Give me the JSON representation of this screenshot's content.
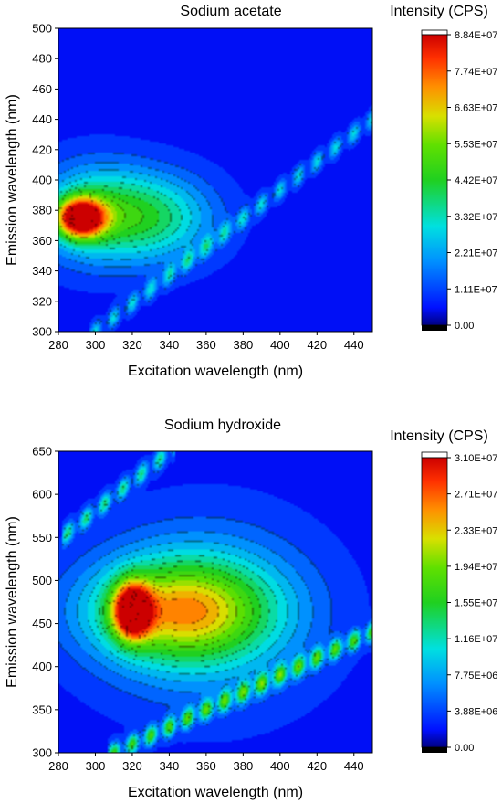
{
  "chart_data": [
    {
      "type": "heatmap",
      "title": "Sodium acetate",
      "xlabel": "Excitation wavelength (nm)",
      "ylabel": "Emission wavelength (nm)",
      "xlim": [
        280,
        450
      ],
      "ylim": [
        300,
        500
      ],
      "x_ticks": [
        "280",
        "300",
        "320",
        "340",
        "360",
        "380",
        "400",
        "420",
        "440"
      ],
      "y_ticks": [
        "300",
        "320",
        "340",
        "360",
        "380",
        "400",
        "420",
        "440",
        "460",
        "480",
        "500"
      ],
      "colorbar": {
        "title": "Intensity (CPS)",
        "min": 0,
        "max": 88400000.0,
        "ticks": [
          "0.00",
          "1.11E+07",
          "2.21E+07",
          "3.32E+07",
          "4.42E+07",
          "5.53E+07",
          "6.63E+07",
          "7.74E+07",
          "8.84E+07"
        ]
      },
      "peaks": [
        {
          "ex": 292,
          "em": 375,
          "value": 80000000.0,
          "sx": 9,
          "sy": 9
        },
        {
          "ex": 300,
          "em": 378,
          "value": 34000000.0,
          "sx": 22,
          "sy": 22
        },
        {
          "ex": 335,
          "em": 375,
          "value": 27000000.0,
          "sx": 22,
          "sy": 20
        }
      ],
      "scatter_band": {
        "ex_start": 300,
        "em_start": 300,
        "ex_end": 450,
        "em_end": 440,
        "value": 24000000.0
      }
    },
    {
      "type": "heatmap",
      "title": "Sodium hydroxide",
      "xlabel": "Excitation wavelength (nm)",
      "ylabel": "Emission wavelength (nm)",
      "xlim": [
        280,
        450
      ],
      "ylim": [
        300,
        650
      ],
      "x_ticks": [
        "280",
        "300",
        "320",
        "340",
        "360",
        "380",
        "400",
        "420",
        "440"
      ],
      "y_ticks": [
        "300",
        "350",
        "400",
        "450",
        "500",
        "550",
        "600",
        "650"
      ],
      "colorbar": {
        "title": "Intensity (CPS)",
        "min": 0,
        "max": 31000000.0,
        "ticks": [
          "0.00",
          "3.88E+06",
          "7.75E+06",
          "1.16E+07",
          "1.55E+07",
          "1.94E+07",
          "2.33E+07",
          "2.71E+07",
          "3.10E+07"
        ]
      },
      "peaks": [
        {
          "ex": 320,
          "em": 465,
          "value": 26000000.0,
          "sx": 7,
          "sy": 22
        },
        {
          "ex": 345,
          "em": 465,
          "value": 17000000.0,
          "sx": 33,
          "sy": 40
        },
        {
          "ex": 360,
          "em": 462,
          "value": 8000000.0,
          "sx": 40,
          "sy": 70
        }
      ],
      "scatter_band": {
        "ex_start": 310,
        "em_start": 300,
        "ex_end": 450,
        "em_end": 440,
        "value": 15000000.0
      },
      "second_order_band": {
        "ex_start": 285,
        "em_start": 555,
        "ex_end": 340,
        "em_end": 650,
        "value": 11000000.0
      }
    }
  ]
}
